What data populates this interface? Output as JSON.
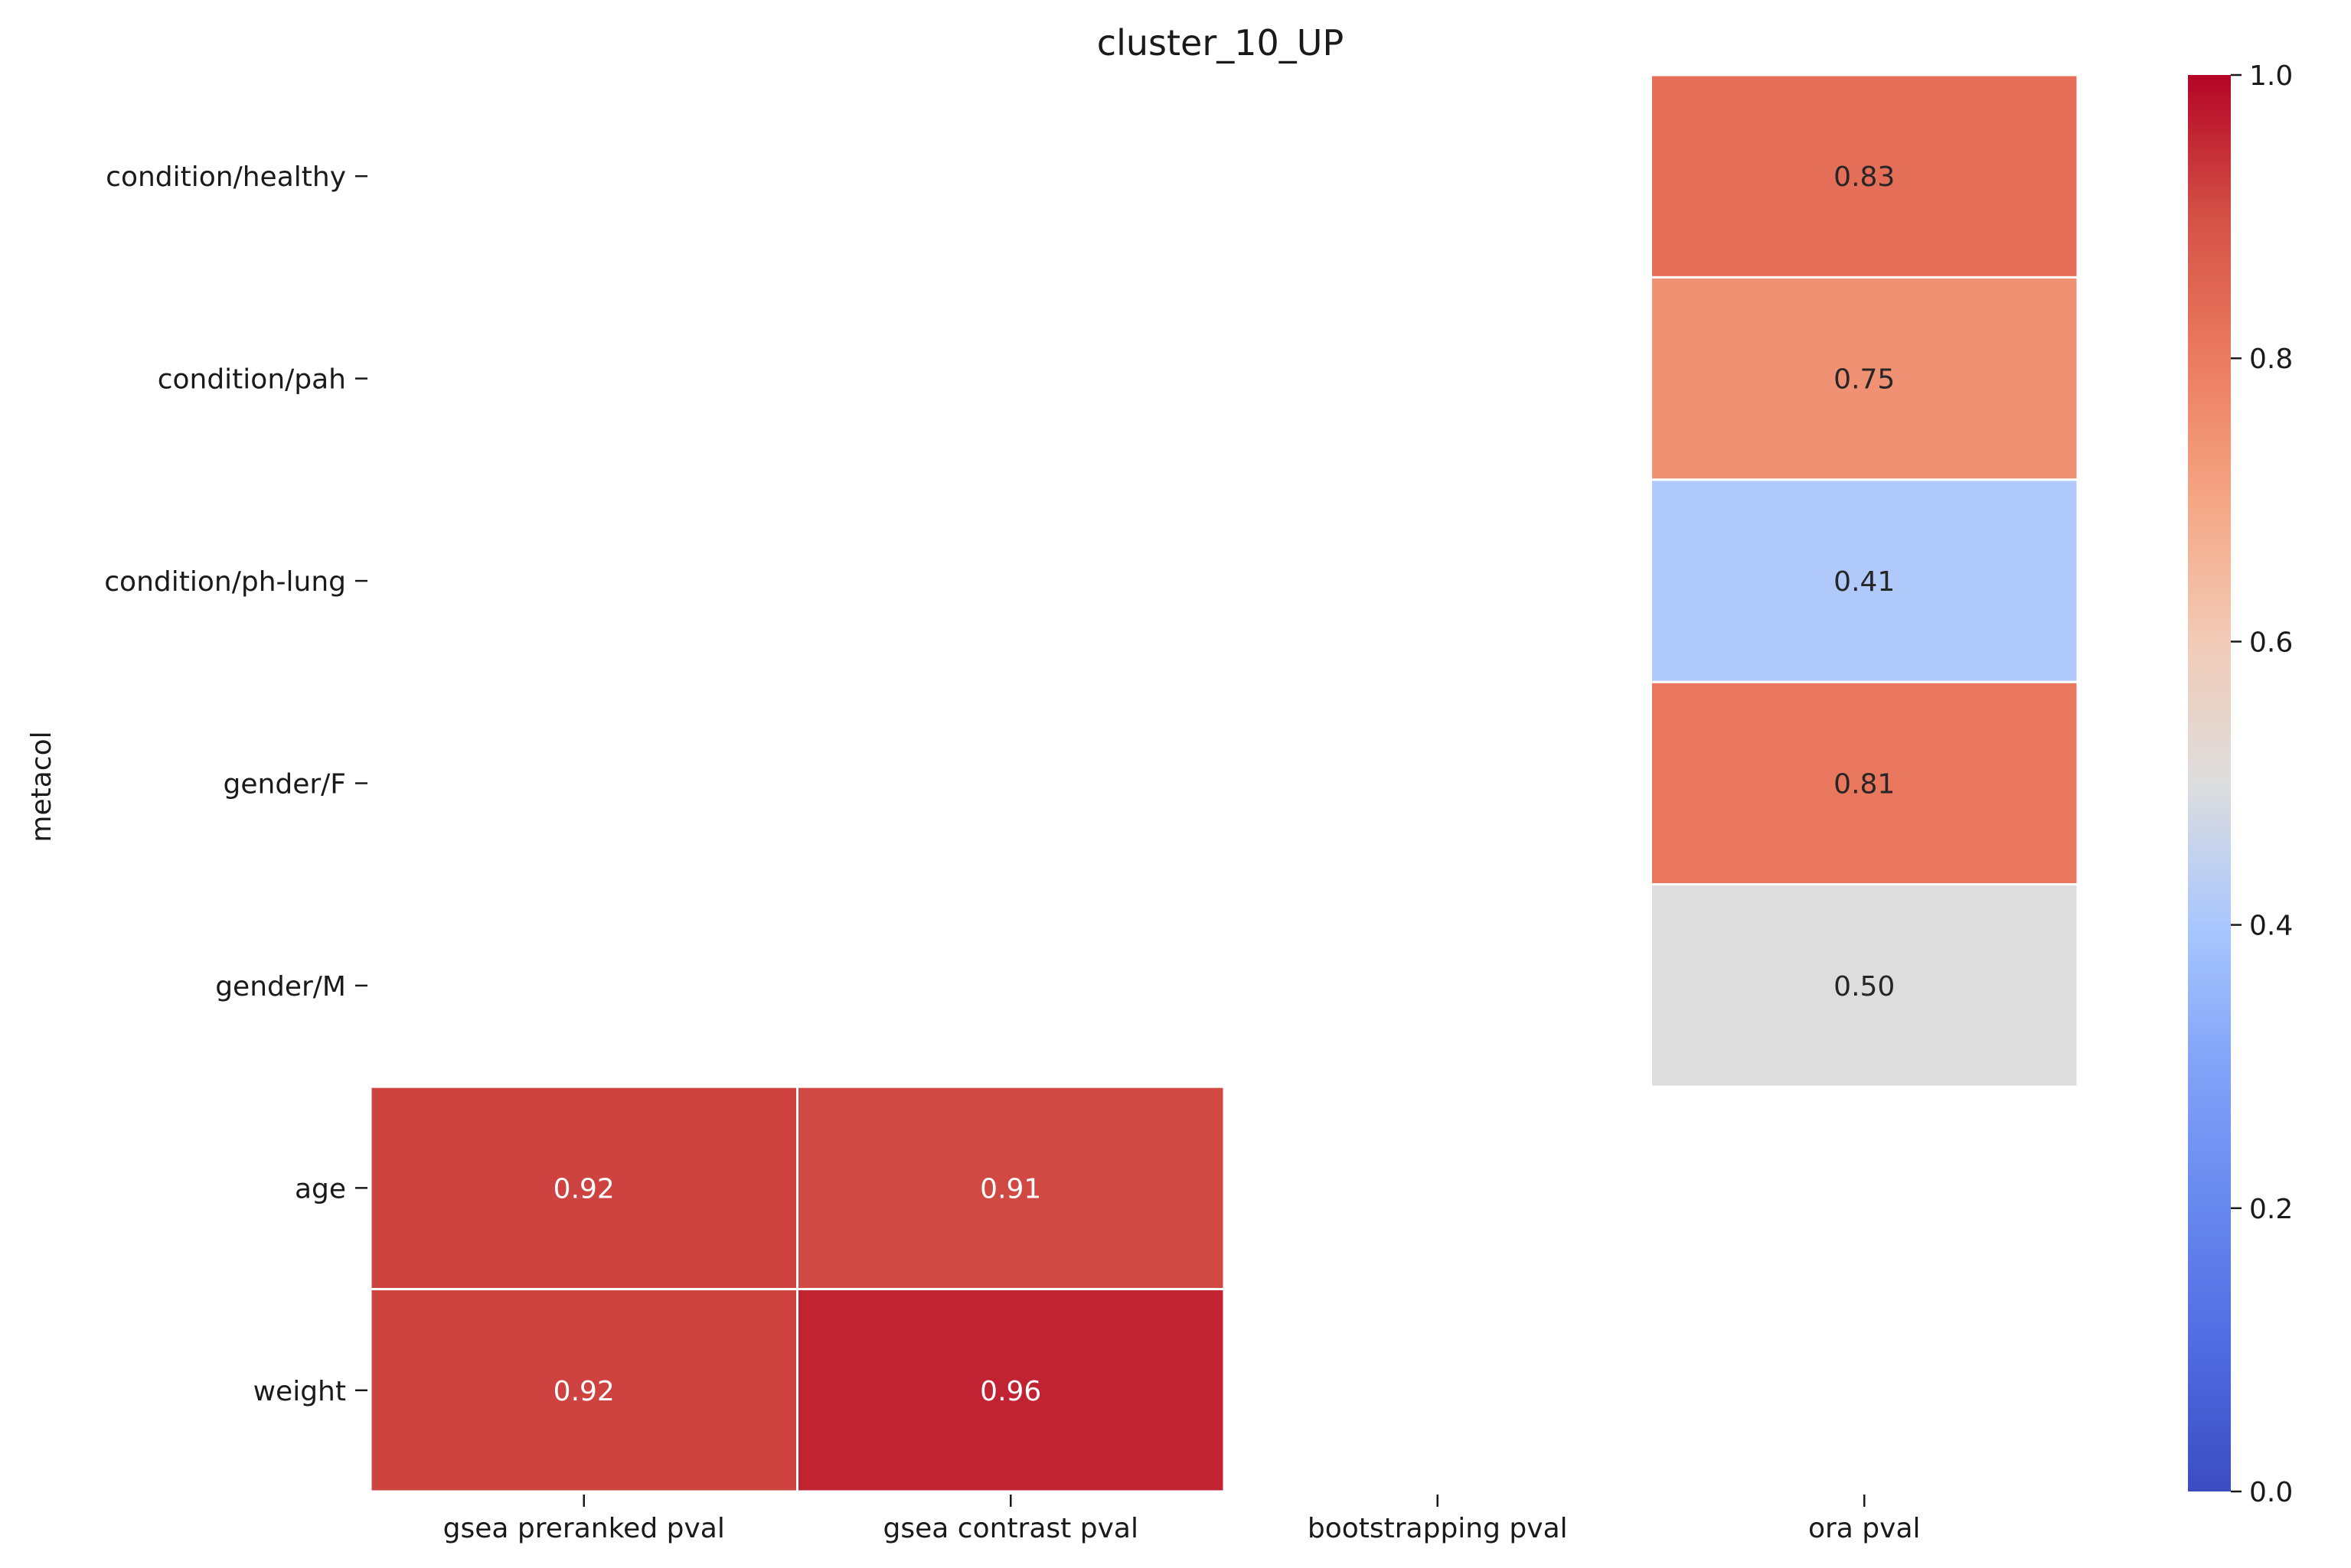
{
  "chart_data": {
    "type": "heatmap",
    "title": "cluster_10_UP",
    "ylabel": "metacol",
    "xlabel": "",
    "columns": [
      "gsea preranked pval",
      "gsea contrast pval",
      "bootstrapping pval",
      "ora pval"
    ],
    "rows": [
      "condition/healthy",
      "condition/pah",
      "condition/ph-lung",
      "gender/F",
      "gender/M",
      "age",
      "weight"
    ],
    "values": [
      [
        null,
        null,
        null,
        0.83
      ],
      [
        null,
        null,
        null,
        0.75
      ],
      [
        null,
        null,
        null,
        0.41
      ],
      [
        null,
        null,
        null,
        0.81
      ],
      [
        null,
        null,
        null,
        0.5
      ],
      [
        0.92,
        0.91,
        null,
        null
      ],
      [
        0.92,
        0.96,
        null,
        null
      ]
    ],
    "cell_labels": [
      [
        "",
        "",
        "",
        "0.83"
      ],
      [
        "",
        "",
        "",
        "0.75"
      ],
      [
        "",
        "",
        "",
        "0.41"
      ],
      [
        "",
        "",
        "",
        "0.81"
      ],
      [
        "",
        "",
        "",
        "0.50"
      ],
      [
        "0.92",
        "0.91",
        "",
        ""
      ],
      [
        "0.92",
        "0.96",
        "",
        ""
      ]
    ],
    "colormap": "coolwarm",
    "colorbar": {
      "range": [
        0,
        1
      ],
      "ticks": [
        "0.0",
        "0.2",
        "0.4",
        "0.6",
        "0.8",
        "1.0"
      ],
      "tick_values": [
        0,
        0.2,
        0.4,
        0.6,
        0.8,
        1.0
      ]
    },
    "colors": {
      "low": "#3b4cc0",
      "mid": "#dddddd",
      "high": "#b40426",
      "cell_border": "#ffffff"
    }
  }
}
